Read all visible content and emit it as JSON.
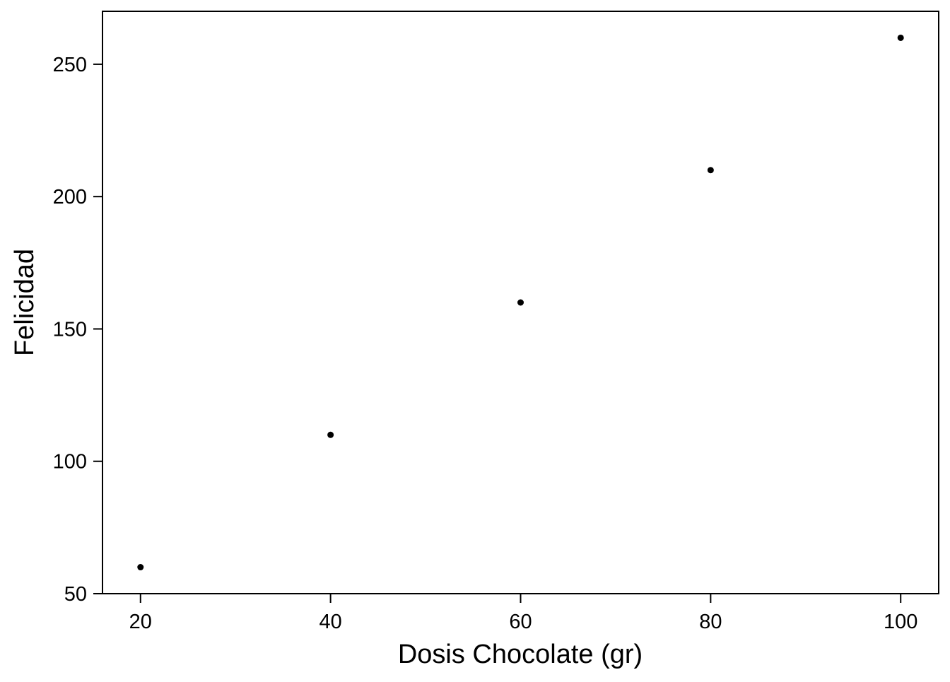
{
  "chart_data": {
    "type": "scatter",
    "title": "",
    "xlabel": "Dosis Chocolate (gr)",
    "ylabel": "Felicidad",
    "x": [
      20,
      40,
      60,
      80,
      100
    ],
    "y": [
      60,
      110,
      160,
      210,
      260
    ],
    "xlim": [
      16,
      104
    ],
    "ylim": [
      50,
      270
    ],
    "xticks": [
      20,
      40,
      60,
      80,
      100
    ],
    "yticks": [
      50,
      100,
      150,
      200,
      250
    ],
    "xtick_labels": [
      "20",
      "40",
      "60",
      "80",
      "100"
    ],
    "ytick_labels": [
      "50",
      "100",
      "150",
      "200",
      "250"
    ],
    "grid": false,
    "legend": "none",
    "marker_color": "#000000",
    "axis_color": "#000000"
  }
}
